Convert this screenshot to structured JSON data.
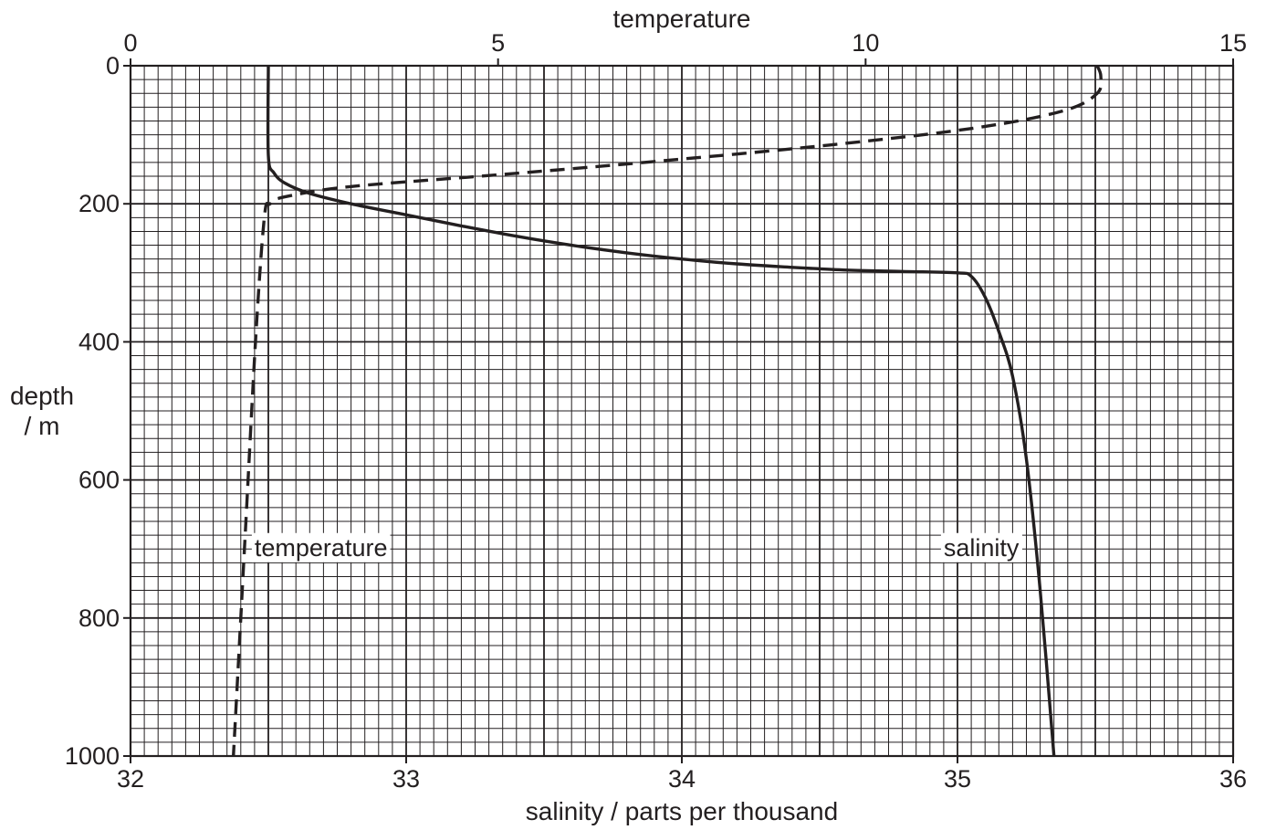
{
  "chart_data": {
    "type": "line",
    "title": "",
    "grid": true,
    "y_axis": {
      "label_line1": "depth",
      "label_line2": "/ m",
      "range": [
        0,
        1000
      ],
      "inverted": true,
      "ticks": [
        0,
        200,
        400,
        600,
        800,
        1000
      ],
      "tick_labels": [
        "0",
        "200",
        "400",
        "600",
        "800",
        "1000"
      ]
    },
    "x_axis_top": {
      "label": "temperature",
      "range": [
        0,
        15
      ],
      "ticks": [
        0,
        5,
        10,
        15
      ],
      "tick_labels": [
        "0",
        "5",
        "10",
        "15"
      ]
    },
    "x_axis_bottom": {
      "label": "salinity / parts per thousand",
      "range": [
        32,
        36
      ],
      "ticks": [
        32,
        33,
        34,
        35,
        36
      ],
      "tick_labels": [
        "32",
        "33",
        "34",
        "35",
        "36"
      ]
    },
    "series": [
      {
        "key": "salinity",
        "name": "salinity",
        "axis": "bottom",
        "style": "solid",
        "points": [
          [
            32.5,
            0
          ],
          [
            32.5,
            130
          ],
          [
            32.52,
            155
          ],
          [
            32.56,
            170
          ],
          [
            32.65,
            185
          ],
          [
            32.8,
            200
          ],
          [
            33.0,
            216
          ],
          [
            33.2,
            232
          ],
          [
            33.4,
            247
          ],
          [
            33.6,
            260
          ],
          [
            33.8,
            271
          ],
          [
            34.0,
            280
          ],
          [
            34.2,
            287
          ],
          [
            34.4,
            292
          ],
          [
            34.6,
            296
          ],
          [
            34.8,
            298
          ],
          [
            35.0,
            300
          ],
          [
            35.05,
            305
          ],
          [
            35.1,
            335
          ],
          [
            35.15,
            385
          ],
          [
            35.2,
            450
          ],
          [
            35.25,
            570
          ],
          [
            35.3,
            760
          ],
          [
            35.35,
            1000
          ]
        ]
      },
      {
        "key": "temperature",
        "name": "temperature",
        "axis": "top",
        "style": "dashed",
        "points": [
          [
            13.15,
            0
          ],
          [
            13.2,
            15
          ],
          [
            13.15,
            40
          ],
          [
            12.7,
            65
          ],
          [
            11.5,
            90
          ],
          [
            9.5,
            115
          ],
          [
            7.0,
            140
          ],
          [
            5.0,
            158
          ],
          [
            3.0,
            175
          ],
          [
            2.1,
            190
          ],
          [
            1.9,
            200
          ],
          [
            1.82,
            220
          ],
          [
            1.7,
            400
          ],
          [
            1.55,
            700
          ],
          [
            1.4,
            1000
          ]
        ],
        "label_position": "left"
      }
    ],
    "annotations": [
      {
        "text": "temperature",
        "series": "temperature",
        "x_bottom": 32.45,
        "y": 710
      },
      {
        "text": "salinity",
        "series": "salinity",
        "x_bottom": 34.95,
        "y": 710
      }
    ]
  }
}
